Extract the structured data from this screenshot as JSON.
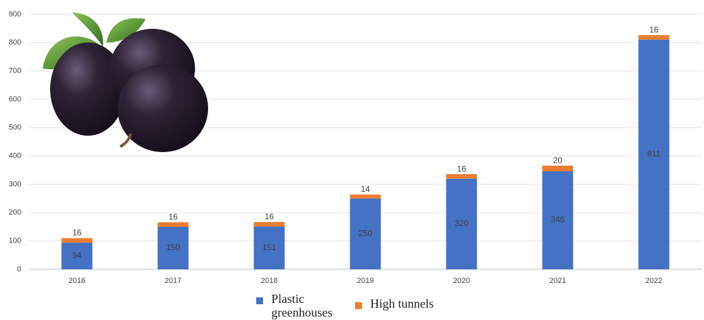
{
  "chart_data": {
    "type": "stacked-bar",
    "categories": [
      "2016",
      "2017",
      "2018",
      "2019",
      "2020",
      "2021",
      "2022"
    ],
    "series": [
      {
        "name": "Plastic greenhouses",
        "color": "#4472c4",
        "values": [
          94,
          150,
          151,
          250,
          320,
          346,
          811
        ]
      },
      {
        "name": "High tunnels",
        "color": "#ed7d31",
        "values": [
          16,
          16,
          16,
          14,
          16,
          20,
          16
        ]
      }
    ],
    "ylim": [
      0,
      900
    ],
    "yticks": [
      0,
      100,
      200,
      300,
      400,
      500,
      600,
      700,
      800,
      900
    ],
    "grid": true
  }
}
